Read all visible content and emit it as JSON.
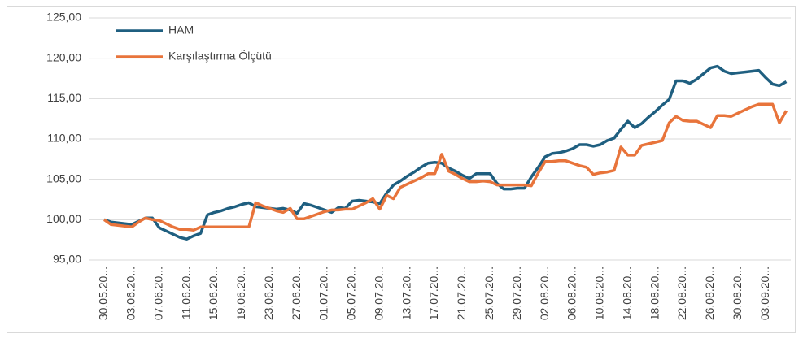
{
  "chart_data": {
    "type": "line",
    "categories": [
      "30.05.20...",
      null,
      null,
      null,
      "03.06.20...",
      null,
      null,
      null,
      "07.06.20...",
      null,
      null,
      null,
      "11.06.20...",
      null,
      null,
      null,
      "15.06.20...",
      null,
      null,
      null,
      "19.06.20...",
      null,
      null,
      null,
      "23.06.20...",
      null,
      null,
      null,
      "27.06.20...",
      null,
      null,
      null,
      "01.07.20...",
      null,
      null,
      null,
      "05.07.20...",
      null,
      null,
      null,
      "09.07.20...",
      null,
      null,
      null,
      "13.07.20...",
      null,
      null,
      null,
      "17.07.20...",
      null,
      null,
      null,
      "21.07.20...",
      null,
      null,
      null,
      "25.07.20...",
      null,
      null,
      null,
      "29.07.20...",
      null,
      null,
      null,
      "02.08.20...",
      null,
      null,
      null,
      "06.08.20...",
      null,
      null,
      null,
      "10.08.20...",
      null,
      null,
      null,
      "14.08.20...",
      null,
      null,
      null,
      "18.08.20...",
      null,
      null,
      null,
      "22.08.20...",
      null,
      null,
      null,
      "26.08.20...",
      null,
      null,
      null,
      "30.08.20...",
      null,
      null,
      null,
      "03.09.20...",
      null,
      null,
      null
    ],
    "series": [
      {
        "name": "HAM",
        "color": "#1f5f80",
        "values": [
          100.0,
          99.7,
          99.6,
          99.5,
          99.4,
          99.8,
          100.2,
          100.2,
          99.0,
          98.6,
          98.2,
          97.8,
          97.6,
          98.0,
          98.3,
          100.6,
          100.9,
          101.1,
          101.4,
          101.6,
          101.9,
          102.1,
          101.6,
          101.5,
          101.4,
          101.3,
          101.4,
          101.2,
          100.8,
          102.0,
          101.8,
          101.5,
          101.2,
          100.9,
          101.5,
          101.4,
          102.3,
          102.4,
          102.3,
          102.2,
          102.0,
          103.3,
          104.3,
          104.8,
          105.4,
          105.9,
          106.5,
          107.0,
          107.1,
          107.0,
          106.4,
          106.0,
          105.5,
          105.1,
          105.7,
          105.7,
          105.7,
          104.5,
          103.8,
          103.8,
          103.9,
          103.9,
          105.3,
          106.5,
          107.8,
          108.2,
          108.3,
          108.5,
          108.8,
          109.3,
          109.3,
          109.1,
          109.3,
          109.8,
          110.1,
          111.2,
          112.2,
          111.4,
          111.9,
          112.7,
          113.4,
          114.2,
          114.9,
          117.2,
          117.2,
          116.9,
          117.4,
          118.1,
          118.8,
          119.0,
          118.4,
          118.1,
          118.2,
          118.3,
          118.4,
          118.5,
          117.6,
          116.8,
          116.6,
          117.1
        ]
      },
      {
        "name": "Karşılaştırma Ölçütü",
        "color": "#e8743b",
        "values": [
          100.0,
          99.4,
          99.3,
          99.2,
          99.1,
          99.7,
          100.2,
          100.0,
          99.9,
          99.5,
          99.1,
          98.8,
          98.8,
          98.7,
          99.1,
          99.1,
          99.1,
          99.1,
          99.1,
          99.1,
          99.1,
          99.1,
          102.1,
          101.7,
          101.4,
          101.1,
          100.9,
          101.4,
          100.1,
          100.1,
          100.4,
          100.7,
          101.0,
          101.2,
          101.2,
          101.3,
          101.3,
          101.7,
          102.1,
          102.6,
          101.3,
          103.0,
          102.6,
          104.0,
          104.4,
          104.8,
          105.2,
          105.7,
          105.7,
          108.1,
          106.0,
          105.6,
          105.1,
          104.7,
          104.7,
          104.8,
          104.7,
          104.3,
          104.3,
          104.3,
          104.3,
          104.3,
          104.2,
          105.8,
          107.2,
          107.2,
          107.3,
          107.3,
          107.0,
          106.7,
          106.5,
          105.6,
          105.8,
          105.9,
          106.1,
          109.0,
          108.0,
          108.0,
          109.2,
          109.4,
          109.6,
          109.8,
          112.0,
          112.8,
          112.3,
          112.2,
          112.2,
          111.8,
          111.4,
          112.9,
          112.9,
          112.8,
          113.2,
          113.6,
          114.0,
          114.3,
          114.3,
          114.3,
          112.0,
          113.5
        ]
      }
    ],
    "ylim": [
      95,
      125
    ],
    "yticks": [
      {
        "value": 95,
        "label": "95,00"
      },
      {
        "value": 100,
        "label": "100,00"
      },
      {
        "value": 105,
        "label": "105,00"
      },
      {
        "value": 110,
        "label": "110,00"
      },
      {
        "value": 115,
        "label": "115,00"
      },
      {
        "value": 120,
        "label": "120,00"
      },
      {
        "value": 125,
        "label": "125,00"
      }
    ],
    "grid": true,
    "legend": "top-left"
  }
}
